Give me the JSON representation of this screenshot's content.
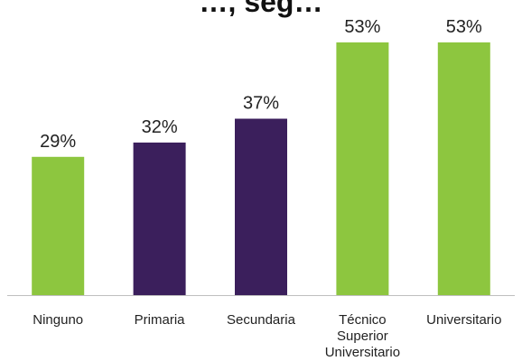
{
  "chart_data": {
    "type": "bar",
    "title": "…, seg…",
    "categories": [
      "Ninguno",
      "Primaria",
      "Secundaria",
      "Técnico Superior Universitario",
      "Universitario"
    ],
    "category_lines": [
      [
        "Ninguno"
      ],
      [
        "Primaria"
      ],
      [
        "Secundaria"
      ],
      [
        "Técnico",
        "Superior",
        "Universitario"
      ],
      [
        "Universitario"
      ]
    ],
    "values": [
      29,
      32,
      37,
      53,
      53
    ],
    "value_labels": [
      "29%",
      "32%",
      "37%",
      "53%",
      "53%"
    ],
    "colors": [
      "#8dc63f",
      "#3b1f5c",
      "#3b1f5c",
      "#8dc63f",
      "#8dc63f"
    ],
    "ylim": [
      0,
      60
    ],
    "grid": false,
    "legend": "none"
  }
}
